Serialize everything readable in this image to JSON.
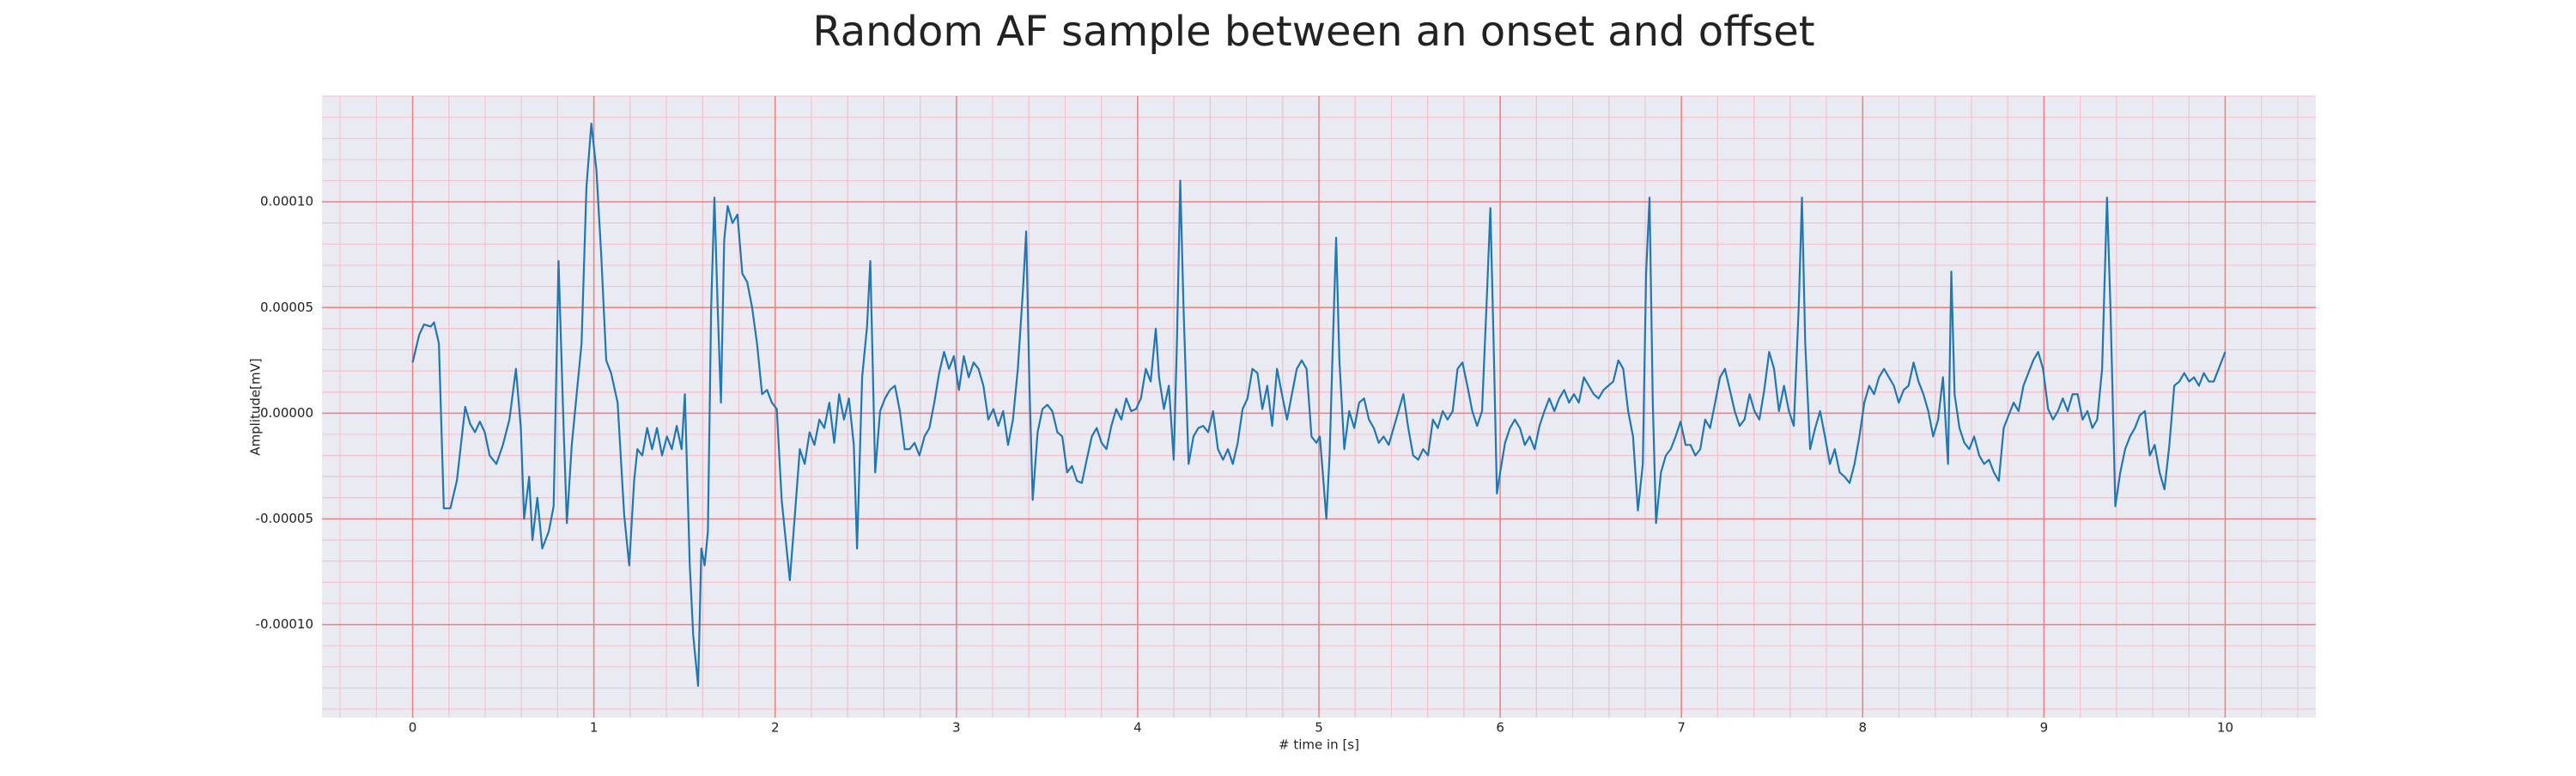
{
  "chart_data": {
    "type": "line",
    "title": "Random AF sample between an onset and offset",
    "x_label": "# time in [s]",
    "y_label": "Amplitude[mV]",
    "xlim": [
      -0.5,
      10.5
    ],
    "ylim": [
      -0.000144,
      0.00015
    ],
    "xticks": [
      0,
      1,
      2,
      3,
      4,
      5,
      6,
      7,
      8,
      9,
      10
    ],
    "yticks": [
      {
        "value": -0.0001,
        "label": "-0.00010"
      },
      {
        "value": -5e-05,
        "label": "-0.00005"
      },
      {
        "value": 0,
        "label": "0.00000"
      },
      {
        "value": 5e-05,
        "label": "0.00005"
      },
      {
        "value": 0.0001,
        "label": "0.00010"
      }
    ],
    "grid": true,
    "minor_grid": true,
    "grid_color": "#f07f7f",
    "minor_grid_color": "#f4c2cb",
    "background": "#eaeaf2",
    "color": "#1f77b4",
    "x": [
      0,
      0.036,
      0.063,
      0.1,
      0.118,
      0.145,
      0.172,
      0.208,
      0.244,
      0.29,
      0.317,
      0.344,
      0.371,
      0.398,
      0.425,
      0.462,
      0.498,
      0.534,
      0.57,
      0.597,
      0.615,
      0.643,
      0.661,
      0.688,
      0.715,
      0.751,
      0.778,
      0.805,
      0.833,
      0.851,
      0.878,
      0.905,
      0.932,
      0.959,
      0.986,
      1.014,
      1.041,
      1.068,
      1.095,
      1.131,
      1.167,
      1.195,
      1.222,
      1.24,
      1.267,
      1.294,
      1.321,
      1.348,
      1.376,
      1.403,
      1.43,
      1.457,
      1.484,
      1.502,
      1.529,
      1.548,
      1.575,
      1.593,
      1.611,
      1.629,
      1.647,
      1.665,
      1.683,
      1.701,
      1.719,
      1.738,
      1.765,
      1.792,
      1.819,
      1.846,
      1.873,
      1.9,
      1.928,
      1.955,
      1.982,
      2.009,
      2.036,
      2.063,
      2.081,
      2.109,
      2.136,
      2.163,
      2.19,
      2.217,
      2.244,
      2.271,
      2.299,
      2.326,
      2.353,
      2.38,
      2.407,
      2.434,
      2.452,
      2.48,
      2.507,
      2.525,
      2.552,
      2.579,
      2.606,
      2.633,
      2.661,
      2.688,
      2.715,
      2.742,
      2.769,
      2.796,
      2.824,
      2.851,
      2.878,
      2.905,
      2.932,
      2.959,
      2.986,
      3.014,
      3.041,
      3.068,
      3.095,
      3.122,
      3.149,
      3.176,
      3.204,
      3.231,
      3.258,
      3.285,
      3.312,
      3.339,
      3.367,
      3.385,
      3.403,
      3.421,
      3.448,
      3.475,
      3.502,
      3.529,
      3.557,
      3.584,
      3.611,
      3.638,
      3.665,
      3.692,
      3.719,
      3.747,
      3.774,
      3.801,
      3.828,
      3.855,
      3.882,
      3.91,
      3.937,
      3.964,
      3.991,
      4.018,
      4.045,
      4.072,
      4.1,
      4.118,
      4.145,
      4.172,
      4.199,
      4.217,
      4.235,
      4.253,
      4.281,
      4.308,
      4.335,
      4.362,
      4.389,
      4.416,
      4.443,
      4.471,
      4.498,
      4.525,
      4.552,
      4.579,
      4.606,
      4.633,
      4.661,
      4.688,
      4.715,
      4.742,
      4.769,
      4.796,
      4.824,
      4.851,
      4.878,
      4.905,
      4.932,
      4.959,
      4.986,
      5.005,
      5.023,
      5.041,
      5.059,
      5.077,
      5.095,
      5.113,
      5.14,
      5.167,
      5.195,
      5.222,
      5.249,
      5.276,
      5.303,
      5.33,
      5.357,
      5.385,
      5.412,
      5.439,
      5.466,
      5.493,
      5.52,
      5.548,
      5.575,
      5.602,
      5.629,
      5.656,
      5.683,
      5.71,
      5.738,
      5.765,
      5.792,
      5.819,
      5.846,
      5.873,
      5.9,
      5.928,
      5.946,
      5.964,
      5.982,
      6,
      6.027,
      6.054,
      6.081,
      6.109,
      6.136,
      6.163,
      6.19,
      6.217,
      6.244,
      6.271,
      6.299,
      6.326,
      6.353,
      6.38,
      6.407,
      6.434,
      6.462,
      6.489,
      6.516,
      6.543,
      6.57,
      6.597,
      6.624,
      6.652,
      6.679,
      6.706,
      6.733,
      6.76,
      6.787,
      6.805,
      6.824,
      6.842,
      6.86,
      6.887,
      6.914,
      6.941,
      6.968,
      6.995,
      7.023,
      7.05,
      7.077,
      7.104,
      7.131,
      7.158,
      7.186,
      7.213,
      7.24,
      7.267,
      7.294,
      7.321,
      7.348,
      7.376,
      7.403,
      7.43,
      7.457,
      7.484,
      7.511,
      7.538,
      7.566,
      7.593,
      7.62,
      7.647,
      7.665,
      7.683,
      7.71,
      7.738,
      7.765,
      7.792,
      7.819,
      7.846,
      7.873,
      7.9,
      7.928,
      7.955,
      7.982,
      8.009,
      8.036,
      8.063,
      8.09,
      8.118,
      8.145,
      8.172,
      8.199,
      8.226,
      8.253,
      8.281,
      8.308,
      8.335,
      8.362,
      8.389,
      8.416,
      8.443,
      8.471,
      8.489,
      8.507,
      8.534,
      8.561,
      8.588,
      8.615,
      8.643,
      8.67,
      8.697,
      8.724,
      8.751,
      8.778,
      8.805,
      8.833,
      8.86,
      8.887,
      8.914,
      8.941,
      8.968,
      8.995,
      9.023,
      9.05,
      9.077,
      9.104,
      9.131,
      9.158,
      9.186,
      9.213,
      9.24,
      9.267,
      9.294,
      9.321,
      9.348,
      9.367,
      9.394,
      9.421,
      9.448,
      9.475,
      9.502,
      9.529,
      9.557,
      9.584,
      9.611,
      9.638,
      9.665,
      9.692,
      9.719,
      9.747,
      9.774,
      9.801,
      9.828,
      9.855,
      9.882,
      9.91,
      9.937,
      9.964,
      10
    ],
    "values": [
      2.4e-05,
      3.7e-05,
      4.2e-05,
      4.1e-05,
      4.3e-05,
      3.3e-05,
      -4.5e-05,
      -4.5e-05,
      -3.2e-05,
      3e-06,
      -5e-06,
      -9e-06,
      -4e-06,
      -9e-06,
      -2e-05,
      -2.4e-05,
      -1.5e-05,
      -3e-06,
      2.1e-05,
      -7e-06,
      -5e-05,
      -3e-05,
      -6e-05,
      -4e-05,
      -6.4e-05,
      -5.6e-05,
      -4.4e-05,
      7.2e-05,
      -7e-06,
      -5.2e-05,
      -1.5e-05,
      9e-06,
      3.3e-05,
      0.000107,
      0.000137,
      0.000115,
      7.4e-05,
      2.5e-05,
      1.9e-05,
      5e-06,
      -4.8e-05,
      -7.2e-05,
      -3.2e-05,
      -1.7e-05,
      -2e-05,
      -7e-06,
      -1.7e-05,
      -7e-06,
      -2e-05,
      -1.1e-05,
      -1.7e-05,
      -6e-06,
      -1.7e-05,
      9e-06,
      -7.2e-05,
      -0.000105,
      -0.000129,
      -6.4e-05,
      -7.2e-05,
      -5.6e-05,
      5e-05,
      0.000102,
      5e-05,
      5e-06,
      8.2e-05,
      9.8e-05,
      9e-05,
      9.4e-05,
      6.6e-05,
      6.2e-05,
      5e-05,
      3.3e-05,
      9e-06,
      1.1e-05,
      5e-06,
      2e-06,
      -4.1e-05,
      -6.4e-05,
      -7.9e-05,
      -4.8e-05,
      -1.7e-05,
      -2.4e-05,
      -9e-06,
      -1.5e-05,
      -3e-06,
      -7e-06,
      5e-06,
      -1.4e-05,
      9e-06,
      -3e-06,
      7e-06,
      -1.5e-05,
      -6.4e-05,
      1.7e-05,
      4.1e-05,
      7.2e-05,
      -2.8e-05,
      1e-06,
      7e-06,
      1.1e-05,
      1.3e-05,
      1e-06,
      -1.7e-05,
      -1.7e-05,
      -1.4e-05,
      -2e-05,
      -1.1e-05,
      -7e-06,
      5e-06,
      1.9e-05,
      2.9e-05,
      2.1e-05,
      2.7e-05,
      1.1e-05,
      2.7e-05,
      1.7e-05,
      2.4e-05,
      2.1e-05,
      1.3e-05,
      -3e-06,
      2e-06,
      -6e-06,
      1e-06,
      -1.5e-05,
      -3e-06,
      2.1e-05,
      5.8e-05,
      8.6e-05,
      1.3e-05,
      -4.1e-05,
      -9e-06,
      2e-06,
      4e-06,
      1e-06,
      -9e-06,
      -1.1e-05,
      -2.8e-05,
      -2.5e-05,
      -3.2e-05,
      -3.3e-05,
      -2.2e-05,
      -1.1e-05,
      -7e-06,
      -1.4e-05,
      -1.7e-05,
      -6e-06,
      2e-06,
      -3e-06,
      7e-06,
      1e-06,
      2e-06,
      7e-06,
      2.1e-05,
      1.5e-05,
      4e-05,
      1.7e-05,
      2e-06,
      1.3e-05,
      -2.2e-05,
      3.5e-05,
      0.00011,
      5e-05,
      -2.4e-05,
      -1.1e-05,
      -7e-06,
      -6e-06,
      -9e-06,
      1e-06,
      -1.7e-05,
      -2.2e-05,
      -1.7e-05,
      -2.4e-05,
      -1.4e-05,
      2e-06,
      7e-06,
      2.1e-05,
      1.9e-05,
      2e-06,
      1.3e-05,
      -6e-06,
      2.1e-05,
      9e-06,
      -3e-06,
      9e-06,
      2.1e-05,
      2.5e-05,
      2.1e-05,
      -1.1e-05,
      -1.4e-05,
      -1.1e-05,
      -3e-05,
      -5e-05,
      -2e-05,
      3.3e-05,
      8.3e-05,
      2.5e-05,
      -1.7e-05,
      1e-06,
      -7e-06,
      5e-06,
      7e-06,
      -3e-06,
      -7e-06,
      -1.4e-05,
      -1.1e-05,
      -1.5e-05,
      -7e-06,
      1e-06,
      9e-06,
      -7e-06,
      -2e-05,
      -2.2e-05,
      -1.7e-05,
      -2e-05,
      -3e-06,
      -7e-06,
      1e-06,
      -3e-06,
      1e-06,
      2.1e-05,
      2.4e-05,
      1.3e-05,
      1e-06,
      -6e-06,
      1e-06,
      5.8e-05,
      9.7e-05,
      3.3e-05,
      -3.8e-05,
      -2.8e-05,
      -1.4e-05,
      -7e-06,
      -3e-06,
      -7e-06,
      -1.5e-05,
      -1.1e-05,
      -1.7e-05,
      -6e-06,
      1e-06,
      7e-06,
      1e-06,
      7e-06,
      1.1e-05,
      5e-06,
      9e-06,
      5e-06,
      1.7e-05,
      1.3e-05,
      9e-06,
      7e-06,
      1.1e-05,
      1.3e-05,
      1.5e-05,
      2.5e-05,
      2.1e-05,
      1e-06,
      -1.1e-05,
      -4.6e-05,
      -2.4e-05,
      6.6e-05,
      0.000102,
      5e-06,
      -5.2e-05,
      -2.8e-05,
      -2e-05,
      -1.7e-05,
      -1.1e-05,
      -4e-06,
      -1.5e-05,
      -1.5e-05,
      -2e-05,
      -1.7e-05,
      -3e-06,
      -7e-06,
      5e-06,
      1.7e-05,
      2.1e-05,
      1.1e-05,
      1e-06,
      -6e-06,
      -3e-06,
      9e-06,
      1e-06,
      -3e-06,
      1.1e-05,
      2.9e-05,
      2.1e-05,
      1e-06,
      1.3e-05,
      1e-06,
      -6e-06,
      5e-05,
      0.000102,
      3.3e-05,
      -1.7e-05,
      -7e-06,
      1e-06,
      -1.1e-05,
      -2.4e-05,
      -1.7e-05,
      -2.8e-05,
      -3e-05,
      -3.3e-05,
      -2.4e-05,
      -1.1e-05,
      5e-06,
      1.3e-05,
      9e-06,
      1.7e-05,
      2.1e-05,
      1.7e-05,
      1.3e-05,
      5e-06,
      1.1e-05,
      1.3e-05,
      2.4e-05,
      1.5e-05,
      9e-06,
      1e-06,
      -1.1e-05,
      -3e-06,
      1.7e-05,
      -2.4e-05,
      6.7e-05,
      9e-06,
      -7e-06,
      -1.4e-05,
      -1.7e-05,
      -1.1e-05,
      -2e-05,
      -2.4e-05,
      -2.2e-05,
      -2.8e-05,
      -3.2e-05,
      -7e-06,
      -1e-06,
      5e-06,
      1e-06,
      1.3e-05,
      1.9e-05,
      2.5e-05,
      2.9e-05,
      2.1e-05,
      2e-06,
      -3e-06,
      1e-06,
      7e-06,
      1e-06,
      9e-06,
      9e-06,
      -3e-06,
      1e-06,
      -7e-06,
      -3e-06,
      2.1e-05,
      0.000102,
      5e-05,
      -4.4e-05,
      -2.8e-05,
      -1.7e-05,
      -1.1e-05,
      -7e-06,
      -1e-06,
      1e-06,
      -2e-05,
      -1.5e-05,
      -2.8e-05,
      -3.6e-05,
      -1.5e-05,
      1.3e-05,
      1.5e-05,
      1.9e-05,
      1.5e-05,
      1.7e-05,
      1.3e-05,
      1.9e-05,
      1.5e-05,
      1.5e-05,
      2.1e-05,
      2.9e-05
    ]
  }
}
